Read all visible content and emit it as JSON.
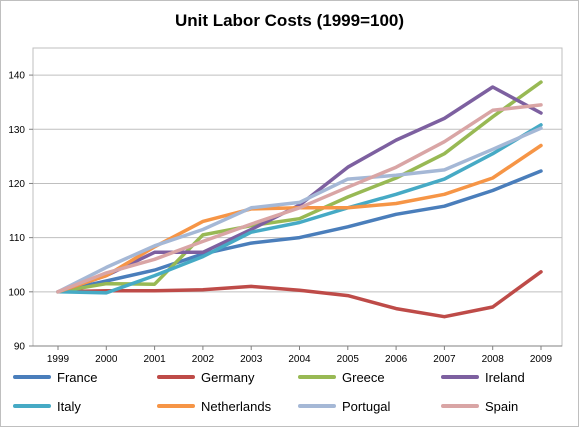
{
  "chart_data": {
    "type": "line",
    "title": "Unit Labor Costs (1999=100)",
    "xlabel": "",
    "ylabel": "",
    "categories": [
      "1999",
      "2000",
      "2001",
      "2002",
      "2003",
      "2004",
      "2005",
      "2006",
      "2007",
      "2008",
      "2009"
    ],
    "ylim": [
      90,
      145
    ],
    "yticks": [
      90,
      100,
      110,
      120,
      130,
      140
    ],
    "grid": "horizontal",
    "legend_position": "bottom",
    "series": [
      {
        "name": "France",
        "color": "#4a7ebb",
        "values": [
          100,
          102,
          104,
          107,
          109,
          110,
          112,
          114.3,
          115.8,
          118.7,
          122.3
        ]
      },
      {
        "name": "Germany",
        "color": "#be4b48",
        "values": [
          100,
          100.2,
          100.2,
          100.4,
          101,
          100.3,
          99.3,
          96.9,
          95.4,
          97.2,
          103.7
        ]
      },
      {
        "name": "Greece",
        "color": "#98b954",
        "values": [
          100,
          101.5,
          101.4,
          110.5,
          112.2,
          113.5,
          117.5,
          121,
          125.5,
          132.3,
          138.7
        ]
      },
      {
        "name": "Ireland",
        "color": "#7d60a0",
        "values": [
          100,
          103,
          107.3,
          107.3,
          111.5,
          116,
          123,
          128,
          132,
          137.8,
          133
        ]
      },
      {
        "name": "Italy",
        "color": "#46aac5",
        "values": [
          100,
          99.8,
          103,
          106.5,
          111,
          112.8,
          115.5,
          118,
          120.8,
          125.5,
          130.8
        ]
      },
      {
        "name": "Netherlands",
        "color": "#f69546",
        "values": [
          100,
          103,
          108.3,
          113,
          115.3,
          115.5,
          115.5,
          116.3,
          118,
          121,
          127
        ]
      },
      {
        "name": "Portugal",
        "color": "#a5b8d6",
        "values": [
          100,
          104.5,
          108.5,
          111.5,
          115.5,
          116.5,
          120.8,
          121.5,
          122.5,
          126.3,
          130.2
        ]
      },
      {
        "name": "Spain",
        "color": "#d9a5a5",
        "values": [
          100,
          103.5,
          106,
          109.3,
          112.5,
          115.5,
          119.3,
          123,
          127.7,
          133.5,
          134.5
        ]
      }
    ]
  }
}
